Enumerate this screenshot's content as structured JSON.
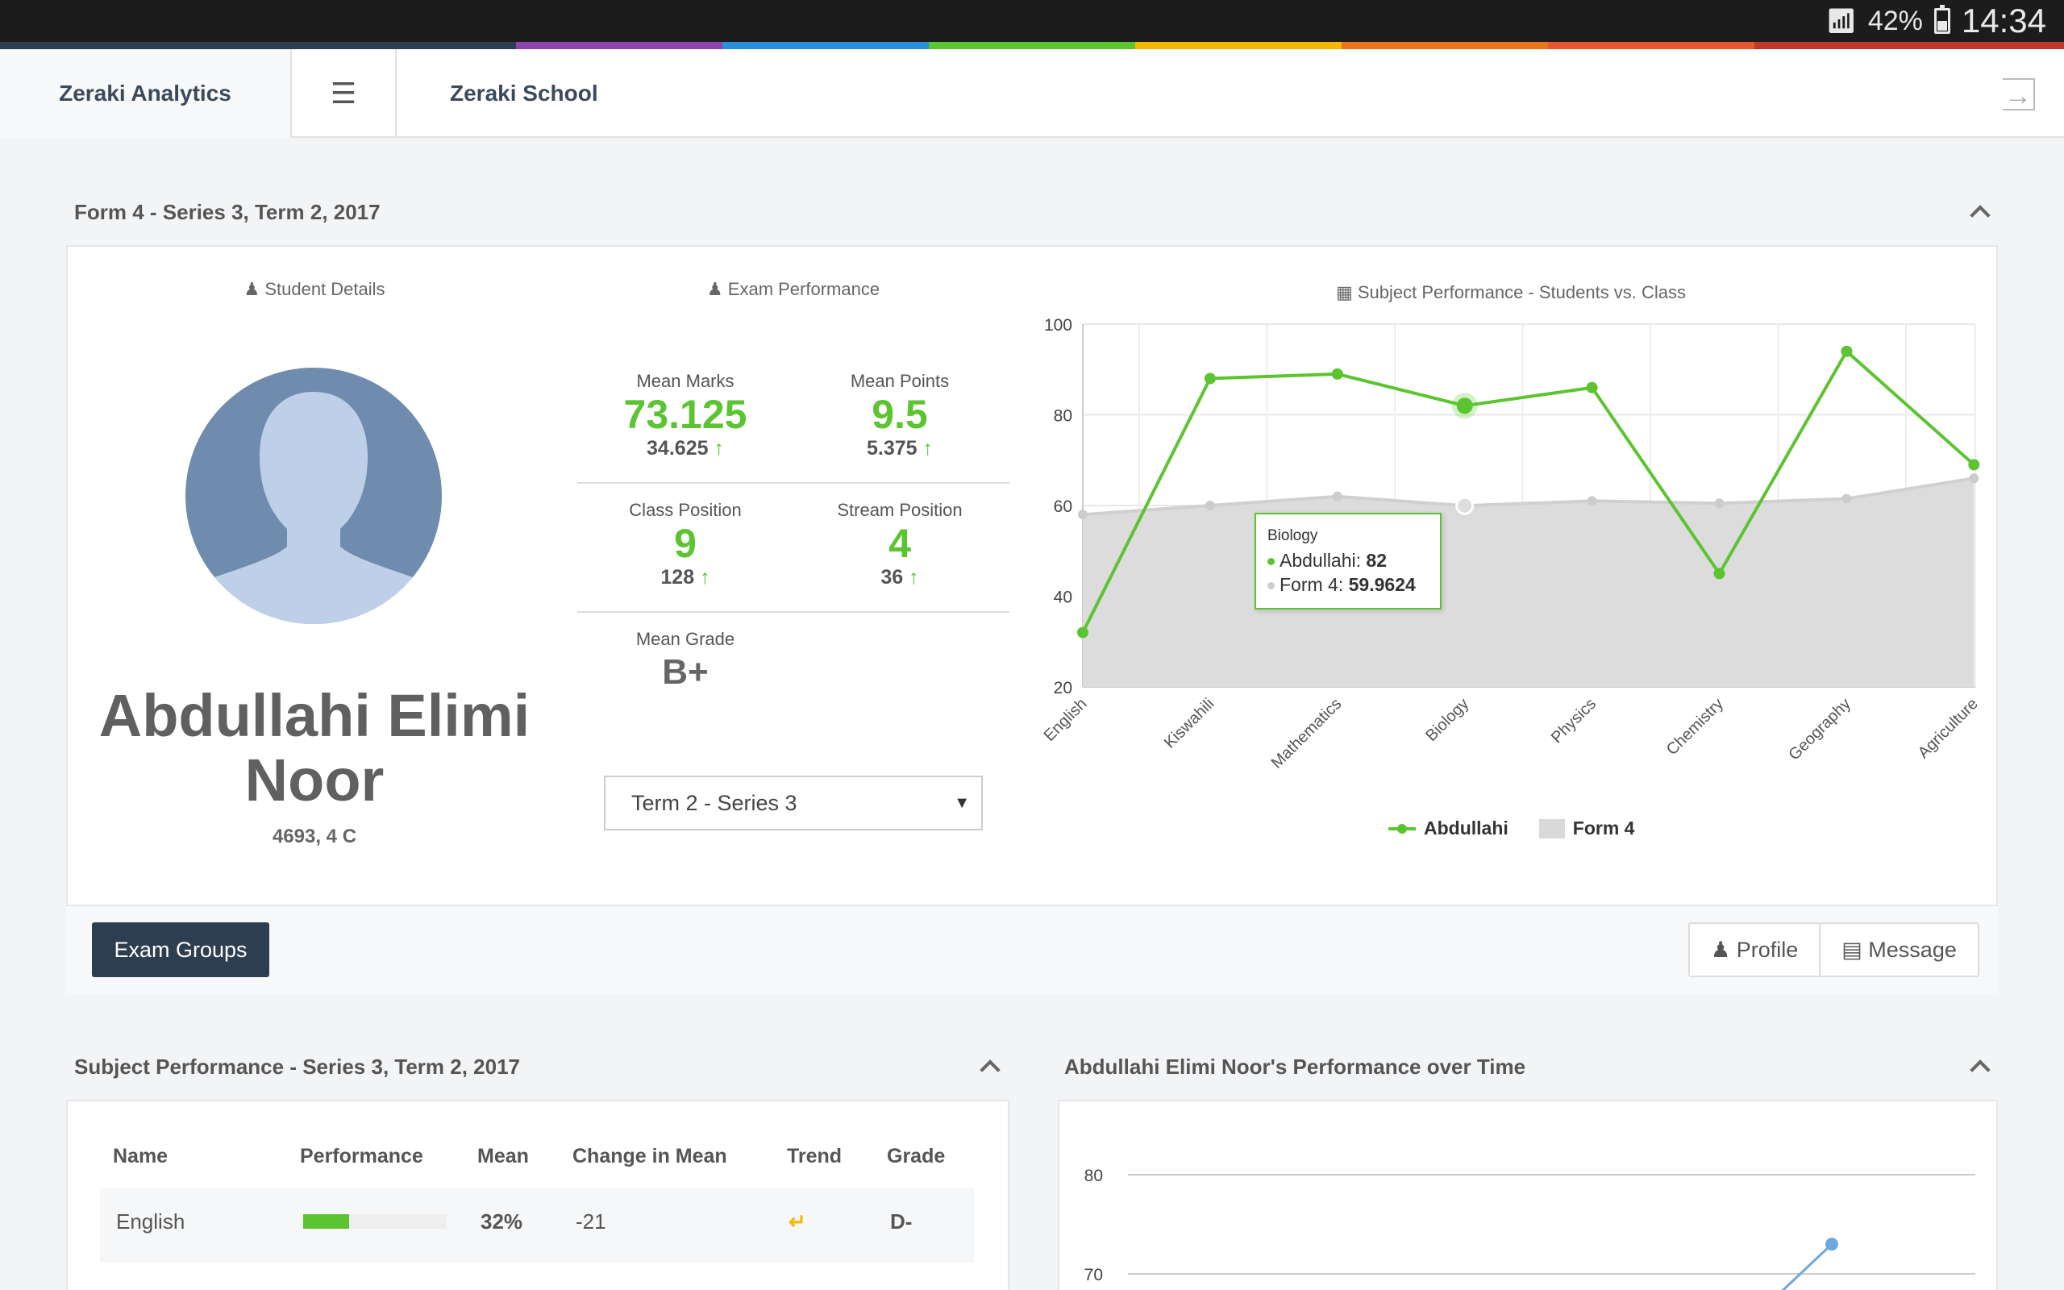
{
  "status_bar": {
    "battery": "42%",
    "time": "14:34"
  },
  "header": {
    "app_title": "Zeraki Analytics",
    "school": "Zeraki School"
  },
  "top_section": {
    "title": "Form 4 - Series 3, Term 2, 2017",
    "student_details_title": "Student Details",
    "exam_performance_title": "Exam Performance",
    "chart_title": "Subject Performance - Students vs. Class"
  },
  "student": {
    "name": "Abdullahi Elimi Noor",
    "id_line": "4693, 4 C"
  },
  "stats": {
    "mean_marks": {
      "label": "Mean Marks",
      "value": "73.125",
      "change": "34.625"
    },
    "mean_points": {
      "label": "Mean Points",
      "value": "9.5",
      "change": "5.375"
    },
    "class_position": {
      "label": "Class Position",
      "value": "9",
      "of": "128"
    },
    "stream_position": {
      "label": "Stream Position",
      "value": "4",
      "of": "36"
    },
    "mean_grade": {
      "label": "Mean Grade",
      "value": "B+"
    }
  },
  "term_select": {
    "value": "Term 2 - Series 3"
  },
  "tooltip": {
    "title": "Biology",
    "student_label": "Abdullahi:",
    "student_value": "82",
    "class_label": "Form 4:",
    "class_value": "59.9624"
  },
  "buttons": {
    "exam_groups": "Exam Groups",
    "profile": "Profile",
    "message": "Message"
  },
  "subject_section": {
    "title": "Subject Performance - Series 3, Term 2, 2017",
    "headers": [
      "Name",
      "Performance",
      "Mean",
      "Change in Mean",
      "Trend",
      "Grade"
    ],
    "rows": [
      {
        "name": "English",
        "performance": 0.32,
        "mean": "32%",
        "change": "-21",
        "grade": "D-"
      }
    ]
  },
  "time_section": {
    "title": "Abdullahi Elimi Noor's Performance over Time"
  },
  "colors": {
    "accent_green": "#5cc430",
    "class_grey": "#d9d9d9",
    "dark_button": "#2d3e50",
    "line_blue": "#6ea8dc"
  },
  "chart_data": [
    {
      "type": "line",
      "title": "Subject Performance - Students vs. Class",
      "categories": [
        "English",
        "Kiswahili",
        "Mathematics",
        "Biology",
        "Physics",
        "Chemistry",
        "Geography",
        "Agriculture"
      ],
      "series": [
        {
          "name": "Abdullahi",
          "type": "line",
          "color": "#5cc430",
          "values": [
            32,
            88,
            89,
            82,
            86,
            45,
            94,
            69
          ]
        },
        {
          "name": "Form 4",
          "type": "area",
          "color": "#d9d9d9",
          "values": [
            58,
            60,
            62,
            59.9624,
            61,
            60.5,
            61.5,
            66
          ]
        }
      ],
      "ylim": [
        20,
        100
      ],
      "yticks": [
        20,
        40,
        60,
        80,
        100
      ],
      "grid": true,
      "legend": "bottom"
    },
    {
      "type": "line",
      "title": "Abdullahi Elimi Noor's Performance over Time",
      "yticks": [
        70,
        80
      ],
      "visible_points": [
        {
          "y": 73
        }
      ],
      "color": "#6ea8dc",
      "grid": true
    }
  ]
}
